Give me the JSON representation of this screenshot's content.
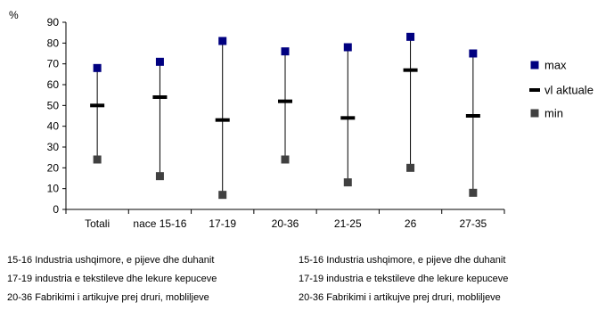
{
  "chart_data": {
    "type": "scatter",
    "subtype": "high-low-close",
    "ylabel": "%",
    "ylim": [
      0,
      90
    ],
    "y_ticks": [
      0,
      10,
      20,
      30,
      40,
      50,
      60,
      70,
      80,
      90
    ],
    "categories": [
      "Totali",
      "nace 15-16",
      "17-19",
      "20-36",
      "21-25",
      "26",
      "27-35"
    ],
    "series": [
      {
        "name": "max",
        "values": [
          68,
          71,
          81,
          76,
          78,
          83,
          75
        ],
        "color": "#000080",
        "marker": "square"
      },
      {
        "name": "vl aktuale",
        "values": [
          50,
          54,
          43,
          52,
          44,
          67,
          45
        ],
        "color": "#000000",
        "marker": "dash"
      },
      {
        "name": "min",
        "values": [
          24,
          16,
          7,
          24,
          13,
          20,
          8
        ],
        "color": "#404040",
        "marker": "square"
      }
    ],
    "legend_position": "right",
    "grid": false
  },
  "notes": {
    "left": [
      "15-16 Industria ushqimore, e pijeve dhe duhanit",
      "17-19 industria e tekstileve dhe lekure kepuceve",
      "20-36 Fabrikimi i artikujve prej druri, mobliljeve"
    ],
    "right": [
      "15-16 Industria ushqimore, e pijeve dhe duhanit",
      "17-19 industria e tekstileve dhe lekure kepuceve",
      "20-36 Fabrikimi i artikujve prej druri, mobliljeve"
    ]
  }
}
